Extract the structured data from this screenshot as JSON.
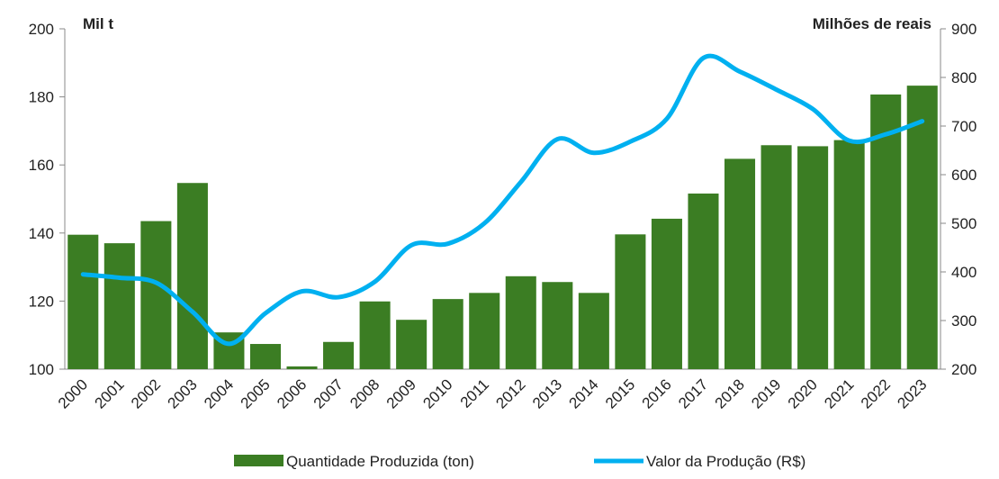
{
  "chart_data": {
    "type": "bar-line",
    "y_label": "Mil t",
    "y2_label": "Milhões de reais",
    "categories": [
      "2000",
      "2001",
      "2002",
      "2003",
      "2004",
      "2005",
      "2006",
      "2007",
      "2008",
      "2009",
      "2010",
      "2011",
      "2012",
      "2013",
      "2014",
      "2015",
      "2016",
      "2017",
      "2018",
      "2019",
      "2020",
      "2021",
      "2022",
      "2023"
    ],
    "series": [
      {
        "name": "Quantidade Produzida (ton)",
        "color": "#3b7d23",
        "type": "bar",
        "values": [
          139.5,
          137,
          143.5,
          154.7,
          110.8,
          107.4,
          100.8,
          108,
          119.9,
          114.5,
          120.6,
          122.4,
          127.3,
          125.6,
          122.4,
          139.6,
          144.2,
          151.6,
          161.8,
          165.8,
          165.5,
          167.3,
          180.7,
          183.3
        ]
      },
      {
        "name": "Valor da Produção (R$)",
        "color": "#00b0f0",
        "type": "line",
        "axis": "y2",
        "values": [
          395,
          388,
          378,
          318,
          252,
          315,
          360,
          348,
          380,
          455,
          458,
          500,
          585,
          673,
          645,
          668,
          715,
          840,
          812,
          775,
          735,
          670,
          683,
          710
        ]
      }
    ],
    "ylim": [
      100,
      200
    ],
    "yticks": [
      100,
      120,
      140,
      160,
      180,
      200
    ],
    "y2lim": [
      200,
      900
    ],
    "y2ticks": [
      200,
      300,
      400,
      500,
      600,
      700,
      800,
      900
    ]
  }
}
